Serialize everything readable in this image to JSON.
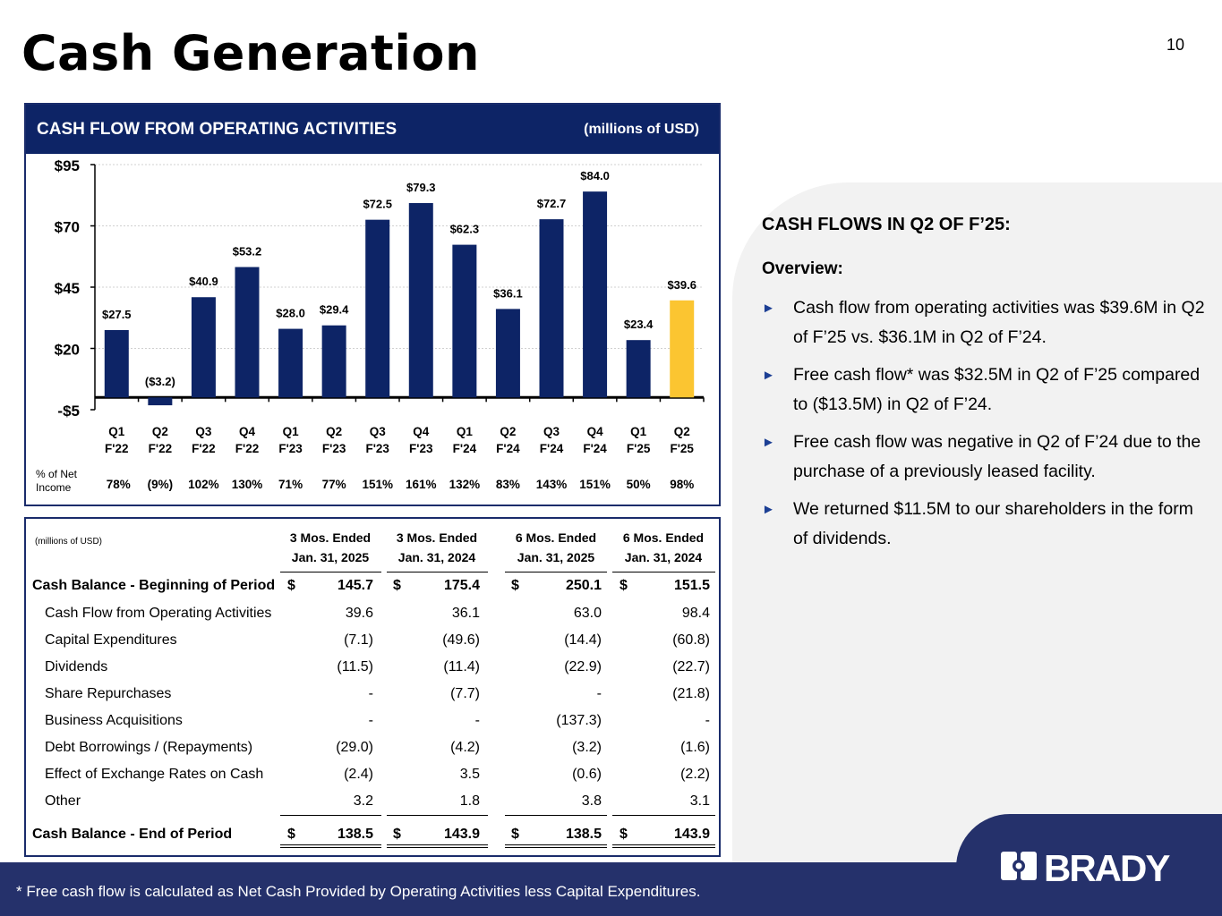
{
  "page": {
    "title": "Cash Generation",
    "page_number": "10"
  },
  "chart_panel": {
    "header_title": "CASH FLOW FROM OPERATING ACTIVITIES",
    "header_units": "(millions of USD)"
  },
  "chart_data": {
    "type": "bar",
    "title": "CASH FLOW FROM OPERATING ACTIVITIES",
    "units": "(millions of USD)",
    "categories": [
      [
        "Q1",
        "F'22"
      ],
      [
        "Q2",
        "F'22"
      ],
      [
        "Q3",
        "F'22"
      ],
      [
        "Q4",
        "F'22"
      ],
      [
        "Q1",
        "F'23"
      ],
      [
        "Q2",
        "F'23"
      ],
      [
        "Q3",
        "F'23"
      ],
      [
        "Q4",
        "F'23"
      ],
      [
        "Q1",
        "F'24"
      ],
      [
        "Q2",
        "F'24"
      ],
      [
        "Q3",
        "F'24"
      ],
      [
        "Q4",
        "F'24"
      ],
      [
        "Q1",
        "F'25"
      ],
      [
        "Q2",
        "F'25"
      ]
    ],
    "values": [
      27.5,
      -3.2,
      40.9,
      53.2,
      28.0,
      29.4,
      72.5,
      79.3,
      62.3,
      36.1,
      72.7,
      84.0,
      23.4,
      39.6
    ],
    "data_labels": [
      "$27.5",
      "($3.2)",
      "$40.9",
      "$53.2",
      "$28.0",
      "$29.4",
      "$72.5",
      "$79.3",
      "$62.3",
      "$36.1",
      "$72.7",
      "$84.0",
      "$23.4",
      "$39.6"
    ],
    "yticks": [
      -5,
      20,
      45,
      70,
      95
    ],
    "ytick_labels": [
      "-$5",
      "$20",
      "$45",
      "$70",
      "$95"
    ],
    "ylim": [
      -5,
      95
    ],
    "grid": true,
    "highlight_index": 13,
    "colors": {
      "bar": "#0d2466",
      "highlight": "#fbc531",
      "grid": "#d0d0d0"
    },
    "pct_label": [
      "% of Net",
      "Income"
    ],
    "pct_of_net_income": [
      "78%",
      "(9%)",
      "102%",
      "130%",
      "71%",
      "77%",
      "151%",
      "161%",
      "132%",
      "83%",
      "143%",
      "151%",
      "50%",
      "98%"
    ]
  },
  "table": {
    "note": "(millions of USD)",
    "columns": [
      [
        "3 Mos. Ended",
        "Jan. 31, 2025"
      ],
      [
        "3 Mos. Ended",
        "Jan. 31, 2024"
      ],
      [
        "6 Mos. Ended",
        "Jan. 31, 2025"
      ],
      [
        "6 Mos. Ended",
        "Jan. 31, 2024"
      ]
    ],
    "currency_symbol": "$",
    "rows": [
      {
        "label": "Cash Balance - Beginning of Period",
        "values": [
          "145.7",
          "175.4",
          "250.1",
          "151.5"
        ],
        "bold": true
      },
      {
        "label": "Cash Flow from Operating Activities",
        "values": [
          "39.6",
          "36.1",
          "63.0",
          "98.4"
        ]
      },
      {
        "label": "Capital Expenditures",
        "values": [
          "(7.1)",
          "(49.6)",
          "(14.4)",
          "(60.8)"
        ]
      },
      {
        "label": "Dividends",
        "values": [
          "(11.5)",
          "(11.4)",
          "(22.9)",
          "(22.7)"
        ]
      },
      {
        "label": "Share Repurchases",
        "values": [
          "-",
          "(7.7)",
          "-",
          "(21.8)"
        ]
      },
      {
        "label": "Business Acquisitions",
        "values": [
          "-",
          "-",
          "(137.3)",
          "-"
        ]
      },
      {
        "label": "Debt Borrowings / (Repayments)",
        "values": [
          "(29.0)",
          "(4.2)",
          "(3.2)",
          "(1.6)"
        ]
      },
      {
        "label": "Effect of Exchange Rates on Cash",
        "values": [
          "(2.4)",
          "3.5",
          "(0.6)",
          "(2.2)"
        ]
      },
      {
        "label": "Other",
        "values": [
          "3.2",
          "1.8",
          "3.8",
          "3.1"
        ]
      },
      {
        "label": "Cash Balance - End of Period",
        "values": [
          "138.5",
          "143.9",
          "138.5",
          "143.9"
        ],
        "bold": true
      }
    ]
  },
  "right_panel": {
    "heading": "CASH FLOWS IN Q2 OF F’25:",
    "subheading": "Overview:",
    "bullet_icon": "arrow-right-icon",
    "bullets": [
      "Cash flow from operating activities was $39.6M in Q2 of F’25 vs. $36.1M in Q2 of F’24.",
      "Free cash flow* was $32.5M in Q2 of F’25 compared to ($13.5M) in Q2 of F’24.",
      "Free cash flow was negative in Q2 of F’24 due to the purchase of a previously leased facility.",
      "We returned $11.5M to our shareholders in the form of dividends."
    ]
  },
  "footer": {
    "footnote": "*    Free cash flow is calculated as Net Cash Provided by Operating Activities less Capital Expenditures.",
    "logo_text": "BRADY",
    "colors": {
      "band": "#25316b",
      "panel": "#f2f2f2"
    }
  }
}
